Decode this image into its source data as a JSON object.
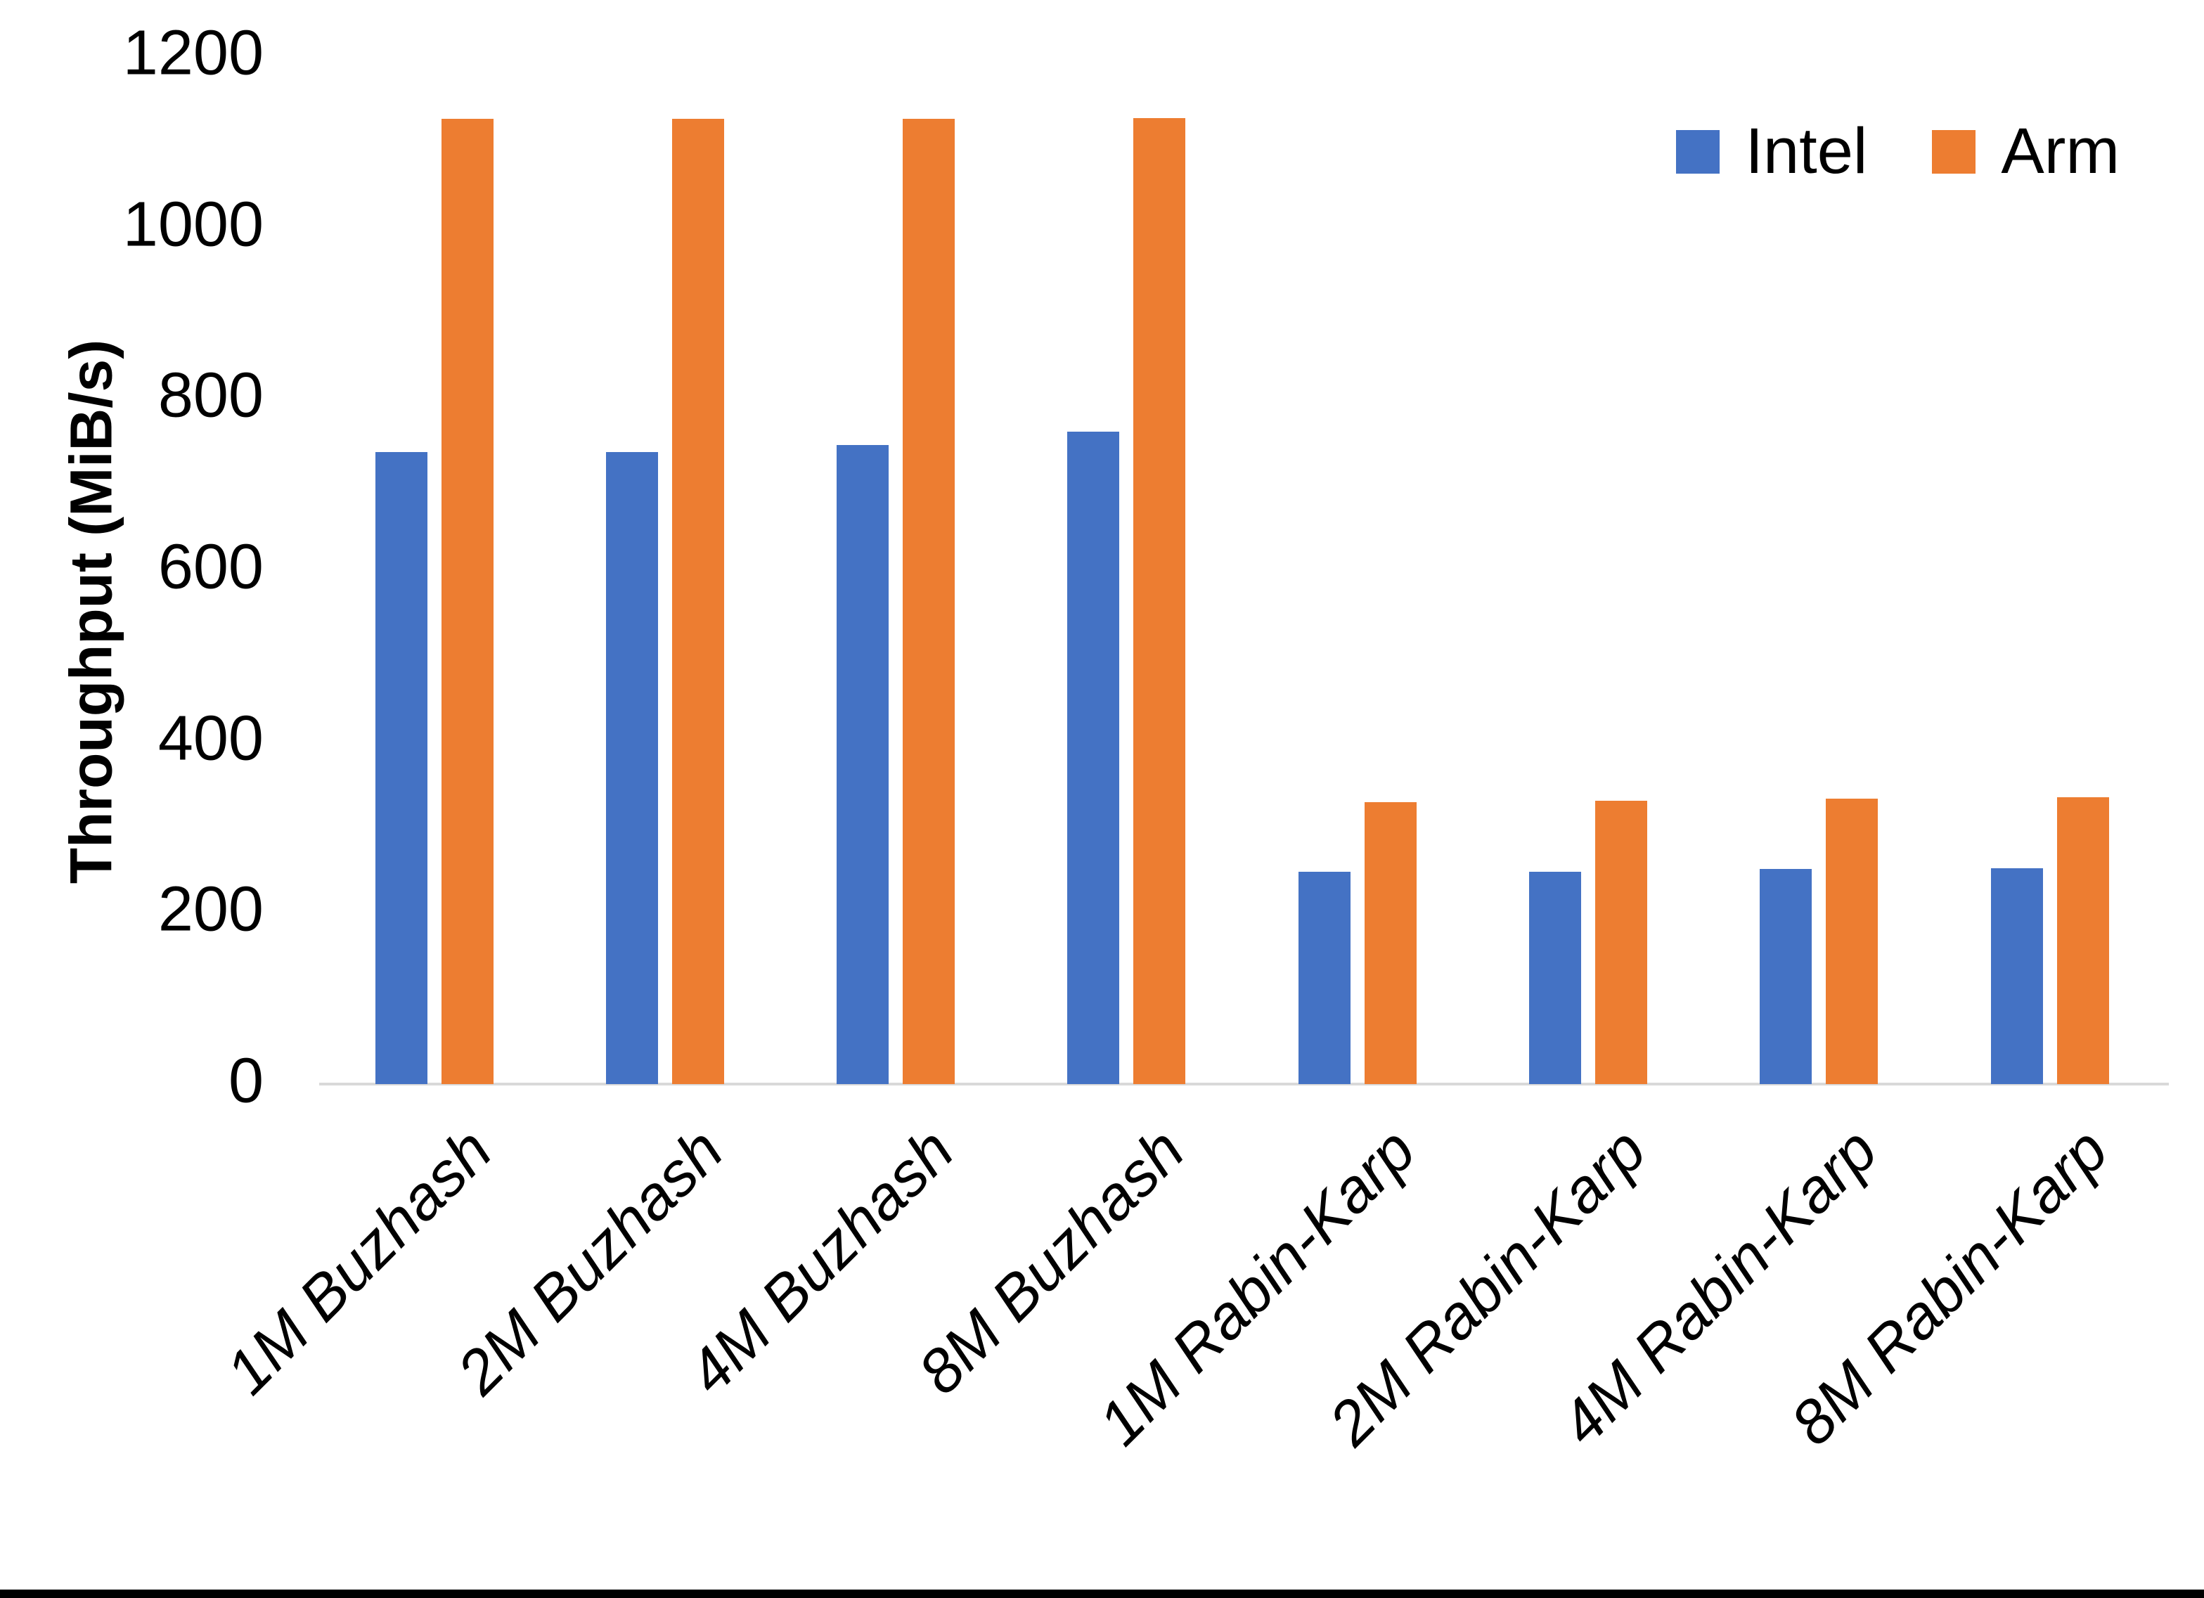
{
  "chart_data": {
    "type": "bar",
    "title": "",
    "xlabel": "",
    "ylabel": "Throughput (MiB/s)",
    "categories": [
      "1M Buzhash",
      "2M Buzhash",
      "4M Buzhash",
      "8M Buzhash",
      "1M Rabin-Karp",
      "2M Rabin-Karp",
      "4M Rabin-Karp",
      "8M Rabin-Karp"
    ],
    "series": [
      {
        "name": "Intel",
        "color": "#4472C4",
        "values": [
          738,
          738,
          746,
          762,
          248,
          248,
          251,
          252
        ]
      },
      {
        "name": "Arm",
        "color": "#ED7D31",
        "values": [
          1127,
          1127,
          1127,
          1128,
          329,
          331,
          333,
          335
        ]
      }
    ],
    "ylim": [
      0,
      1200
    ],
    "yticks": [
      0,
      200,
      400,
      600,
      800,
      1000,
      1200
    ],
    "grid": false,
    "legend_position": "top-right",
    "axis_line_color": "#D9D9D9",
    "text_color": "#000000",
    "background": "#FFFFFF"
  }
}
